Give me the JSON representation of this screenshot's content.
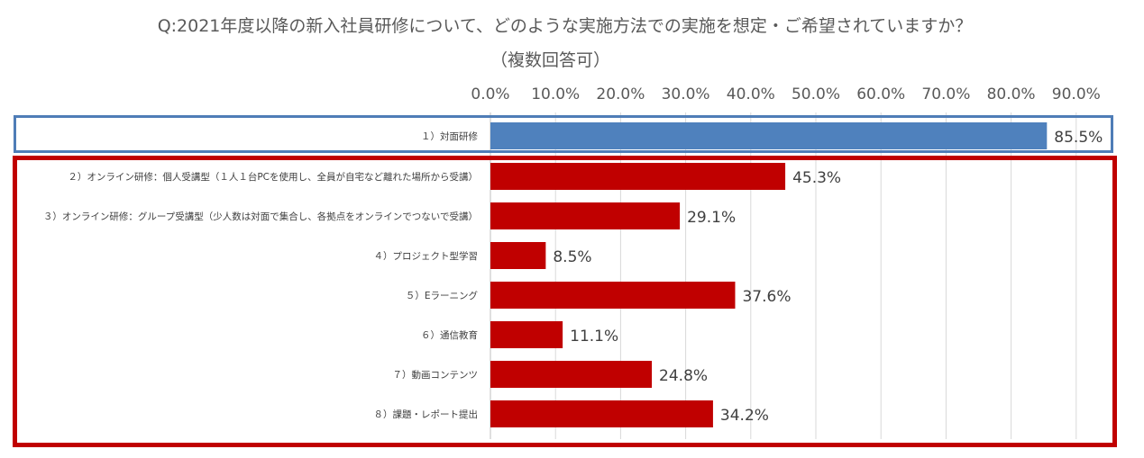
{
  "title": "Q:2021年度以降の新入社員研修について、どのような実施方法での実施を想定・ご希望されていますか？",
  "subtitle": "（複数回答可）",
  "colors": {
    "highlight": "#4f81bd",
    "bar": "#c00000",
    "blue_frame": "#4f7db7",
    "red_frame": "#c00000",
    "grid": "#d9d9d9"
  },
  "chart_data": {
    "type": "bar",
    "orientation": "horizontal",
    "title": "Q:2021年度以降の新入社員研修について、どのような実施方法での実施を想定・ご希望されていますか？",
    "subtitle": "（複数回答可）",
    "xlabel": "",
    "ylabel": "",
    "xlim": [
      0,
      90
    ],
    "x_ticks": [
      "0.0%",
      "10.0%",
      "20.0%",
      "30.0%",
      "40.0%",
      "50.0%",
      "60.0%",
      "70.0%",
      "80.0%",
      "90.0%"
    ],
    "x_axis_position": "top",
    "grid": true,
    "categories": [
      "１）対面研修",
      "２）オンライン研修：個人受講型（１人１台PCを使用し、全員が自宅など離れた場所から受講）",
      "３）オンライン研修：グループ受講型（少人数は対面で集合し、各拠点をオンラインでつないで受講）",
      "４）プロジェクト型学習",
      "５）Eラーニング",
      "６）通信教育",
      "７）動画コンテンツ",
      "８）課題・レポート提出"
    ],
    "values": [
      85.5,
      45.3,
      29.1,
      8.5,
      37.6,
      11.1,
      24.8,
      34.2
    ],
    "labels": [
      "85.5%",
      "45.3%",
      "29.1%",
      "8.5%",
      "37.6%",
      "11.1%",
      "24.8%",
      "34.2%"
    ],
    "highlight_index": 0
  }
}
